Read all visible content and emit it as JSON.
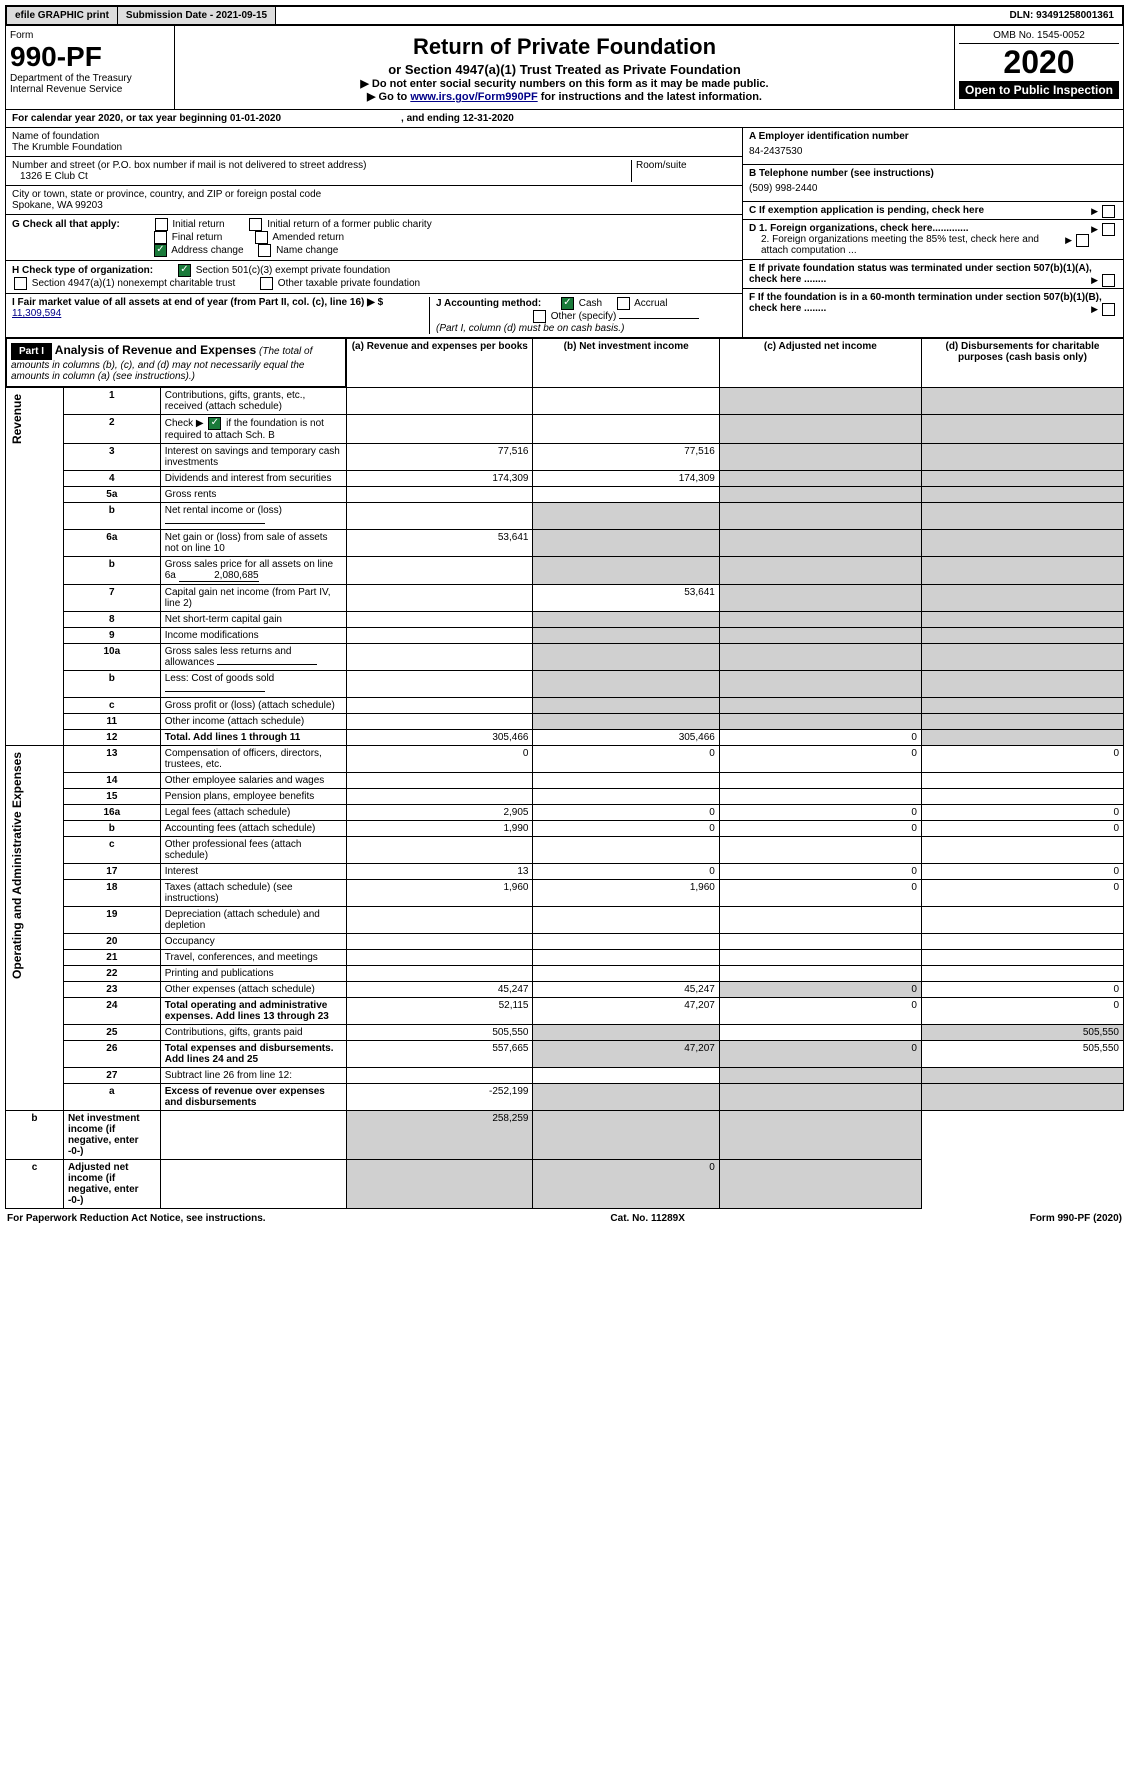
{
  "topbar": {
    "efile": "efile GRAPHIC print",
    "subdate_lbl": "Submission Date - 2021-09-15",
    "dln": "DLN: 93491258001361"
  },
  "hdr": {
    "form": "Form",
    "num": "990-PF",
    "dept": "Department of the Treasury",
    "irs": "Internal Revenue Service",
    "title": "Return of Private Foundation",
    "sub": "or Section 4947(a)(1) Trust Treated as Private Foundation",
    "note1": "▶ Do not enter social security numbers on this form as it may be made public.",
    "note2_a": "▶ Go to ",
    "note2_link": "www.irs.gov/Form990PF",
    "note2_b": " for instructions and the latest information.",
    "omb": "OMB No. 1545-0052",
    "year": "2020",
    "open": "Open to Public Inspection"
  },
  "cal": {
    "line": "For calendar year 2020, or tax year beginning 01-01-2020",
    "end": ", and ending 12-31-2020"
  },
  "id": {
    "name_lbl": "Name of foundation",
    "name": "The Krumble Foundation",
    "addr_lbl": "Number and street (or P.O. box number if mail is not delivered to street address)",
    "room_lbl": "Room/suite",
    "addr": "1326 E Club Ct",
    "city_lbl": "City or town, state or province, country, and ZIP or foreign postal code",
    "city": "Spokane, WA  99203",
    "ein_lbl": "A Employer identification number",
    "ein": "84-2437530",
    "tel_lbl": "B Telephone number (see instructions)",
    "tel": "(509) 998-2440",
    "c": "C  If exemption application is pending, check here",
    "d1": "D 1. Foreign organizations, check here.............",
    "d2": "2. Foreign organizations meeting the 85% test, check here and attach computation ...",
    "e": "E  If private foundation status was terminated under section 507(b)(1)(A), check here ........",
    "f": "F  If the foundation is in a 60-month termination under section 507(b)(1)(B), check here ........"
  },
  "g": {
    "lbl": "G Check all that apply:",
    "initial": "Initial return",
    "initial_former": "Initial return of a former public charity",
    "final": "Final return",
    "amended": "Amended return",
    "addrchg": "Address change",
    "namechg": "Name change"
  },
  "h": {
    "lbl": "H Check type of organization:",
    "s501": "Section 501(c)(3) exempt private foundation",
    "s4947": "Section 4947(a)(1) nonexempt charitable trust",
    "other": "Other taxable private foundation"
  },
  "i": {
    "lbl": "I Fair market value of all assets at end of year (from Part II, col. (c), line 16) ▶ $",
    "val": "11,309,594"
  },
  "j": {
    "lbl": "J Accounting method:",
    "cash": "Cash",
    "accrual": "Accrual",
    "other": "Other (specify)",
    "note": "(Part I, column (d) must be on cash basis.)"
  },
  "p1": {
    "title": "Part I",
    "heading": "Analysis of Revenue and Expenses",
    "note": "(The total of amounts in columns (b), (c), and (d) may not necessarily equal the amounts in column (a) (see instructions).)",
    "ca": "(a) Revenue and expenses per books",
    "cb": "(b) Net investment income",
    "cc": "(c) Adjusted net income",
    "cd": "(d) Disbursements for charitable purposes (cash basis only)"
  },
  "sec": {
    "rev": "Revenue",
    "exp": "Operating and Administrative Expenses"
  },
  "rows": [
    {
      "n": "1",
      "d": "Contributions, gifts, grants, etc., received (attach schedule)"
    },
    {
      "n": "2",
      "d": "Check ▶",
      "d2": "if the foundation is not required to attach Sch. B",
      "chk": true
    },
    {
      "n": "3",
      "d": "Interest on savings and temporary cash investments",
      "a": "77,516",
      "b": "77,516"
    },
    {
      "n": "4",
      "d": "Dividends and interest from securities",
      "a": "174,309",
      "b": "174,309"
    },
    {
      "n": "5a",
      "d": "Gross rents"
    },
    {
      "n": "b",
      "d": "Net rental income or (loss)",
      "line": true
    },
    {
      "n": "6a",
      "d": "Net gain or (loss) from sale of assets not on line 10",
      "a": "53,641"
    },
    {
      "n": "b",
      "d": "Gross sales price for all assets on line 6a",
      "inline": "2,080,685"
    },
    {
      "n": "7",
      "d": "Capital gain net income (from Part IV, line 2)",
      "b": "53,641"
    },
    {
      "n": "8",
      "d": "Net short-term capital gain"
    },
    {
      "n": "9",
      "d": "Income modifications"
    },
    {
      "n": "10a",
      "d": "Gross sales less returns and allowances",
      "line": true
    },
    {
      "n": "b",
      "d": "Less: Cost of goods sold",
      "line": true
    },
    {
      "n": "c",
      "d": "Gross profit or (loss) (attach schedule)"
    },
    {
      "n": "11",
      "d": "Other income (attach schedule)"
    },
    {
      "n": "12",
      "d": "Total. Add lines 1 through 11",
      "bold": true,
      "a": "305,466",
      "b": "305,466",
      "c": "0"
    },
    {
      "n": "13",
      "d": "Compensation of officers, directors, trustees, etc.",
      "a": "0",
      "b": "0",
      "c": "0",
      "dd": "0"
    },
    {
      "n": "14",
      "d": "Other employee salaries and wages"
    },
    {
      "n": "15",
      "d": "Pension plans, employee benefits"
    },
    {
      "n": "16a",
      "d": "Legal fees (attach schedule)",
      "a": "2,905",
      "b": "0",
      "c": "0",
      "dd": "0"
    },
    {
      "n": "b",
      "d": "Accounting fees (attach schedule)",
      "a": "1,990",
      "b": "0",
      "c": "0",
      "dd": "0"
    },
    {
      "n": "c",
      "d": "Other professional fees (attach schedule)"
    },
    {
      "n": "17",
      "d": "Interest",
      "a": "13",
      "b": "0",
      "c": "0",
      "dd": "0"
    },
    {
      "n": "18",
      "d": "Taxes (attach schedule) (see instructions)",
      "a": "1,960",
      "b": "1,960",
      "c": "0",
      "dd": "0"
    },
    {
      "n": "19",
      "d": "Depreciation (attach schedule) and depletion"
    },
    {
      "n": "20",
      "d": "Occupancy"
    },
    {
      "n": "21",
      "d": "Travel, conferences, and meetings"
    },
    {
      "n": "22",
      "d": "Printing and publications"
    },
    {
      "n": "23",
      "d": "Other expenses (attach schedule)",
      "a": "45,247",
      "b": "45,247",
      "c": "0",
      "dd": "0"
    },
    {
      "n": "24",
      "d": "Total operating and administrative expenses. Add lines 13 through 23",
      "bold": true,
      "a": "52,115",
      "b": "47,207",
      "c": "0",
      "dd": "0"
    },
    {
      "n": "25",
      "d": "Contributions, gifts, grants paid",
      "a": "505,550",
      "dd": "505,550"
    },
    {
      "n": "26",
      "d": "Total expenses and disbursements. Add lines 24 and 25",
      "bold": true,
      "a": "557,665",
      "b": "47,207",
      "c": "0",
      "dd": "505,550"
    },
    {
      "n": "27",
      "d": "Subtract line 26 from line 12:"
    },
    {
      "n": "a",
      "d": "Excess of revenue over expenses and disbursements",
      "bold": true,
      "a": "-252,199"
    },
    {
      "n": "b",
      "d": "Net investment income (if negative, enter -0-)",
      "bold": true,
      "b": "258,259"
    },
    {
      "n": "c",
      "d": "Adjusted net income (if negative, enter -0-)",
      "bold": true,
      "c": "0"
    }
  ],
  "foot": {
    "l": "For Paperwork Reduction Act Notice, see instructions.",
    "m": "Cat. No. 11289X",
    "r": "Form 990-PF (2020)"
  }
}
